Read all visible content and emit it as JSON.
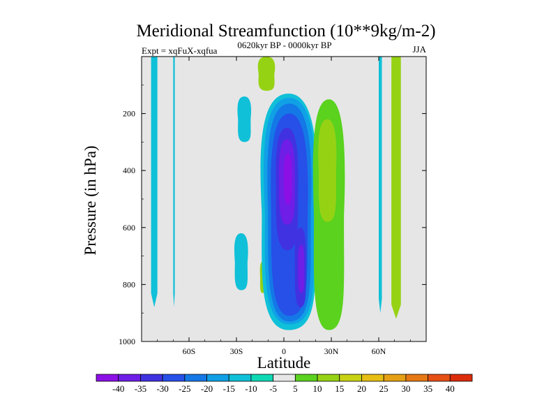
{
  "chart_data": {
    "type": "filled-contour",
    "title": "Meridional Streamfunction (10**9kg/m-2)",
    "left_string": "Expt = xqFuX-xqfua",
    "center_string": "0620kyr BP - 0000kyr BP",
    "right_string": "JJA",
    "xlabel": "Latitude",
    "ylabel": "Pressure (in hPa)",
    "xlim": [
      -90,
      90
    ],
    "ylim": [
      1000,
      0
    ],
    "x_ticks": [
      {
        "value": -60,
        "label": "60S"
      },
      {
        "value": -30,
        "label": "30S"
      },
      {
        "value": 0,
        "label": "0"
      },
      {
        "value": 30,
        "label": "30N"
      },
      {
        "value": 60,
        "label": "60N"
      }
    ],
    "y_ticks": [
      {
        "value": 200,
        "label": "200"
      },
      {
        "value": 400,
        "label": "400"
      },
      {
        "value": 600,
        "label": "600"
      },
      {
        "value": 800,
        "label": "800"
      },
      {
        "value": 1000,
        "label": "1000"
      }
    ],
    "background_color": "#e6e6e6",
    "colorbar": {
      "labels": [
        "-40",
        "-35",
        "-30",
        "-25",
        "-20",
        "-15",
        "-10",
        "-5",
        "5",
        "10",
        "15",
        "20",
        "25",
        "30",
        "35",
        "40"
      ],
      "colors": [
        "#8c10e6",
        "#6e1ee6",
        "#4032e0",
        "#2650e8",
        "#1478e6",
        "#10a0e6",
        "#10c0d8",
        "#10d8b4",
        "#e6e6e6",
        "#5ad21e",
        "#96d214",
        "#c8d214",
        "#e6be14",
        "#e6a014",
        "#e67814",
        "#e65014",
        "#dc2d0a"
      ]
    },
    "features": [
      {
        "name": "south-polar-band",
        "level": -10,
        "lat": [
          -84,
          -80
        ],
        "p": [
          0,
          880
        ]
      },
      {
        "name": "south-narrow-band",
        "level": -10,
        "lat": [
          -70,
          -69
        ],
        "p": [
          0,
          880
        ]
      },
      {
        "name": "south-upper-cell",
        "level": -10,
        "lat": [
          -29,
          -21
        ],
        "p": [
          140,
          300
        ]
      },
      {
        "name": "south-lower-cell",
        "level": -10,
        "lat": [
          -31,
          -23
        ],
        "p": [
          620,
          820
        ]
      },
      {
        "name": "south-positive-sliver",
        "level": 10,
        "lat": [
          -15,
          -12
        ],
        "p": [
          720,
          830
        ]
      },
      {
        "name": "tropical-negative-cell",
        "level": -40,
        "lat": [
          -14,
          20
        ],
        "p": [
          130,
          960
        ]
      },
      {
        "name": "upper-positive-cell",
        "level": 10,
        "lat": [
          -16,
          -6
        ],
        "p": [
          0,
          120
        ]
      },
      {
        "name": "equatorial-positive-cell",
        "level": 10,
        "lat": [
          19,
          38
        ],
        "p": [
          150,
          960
        ]
      },
      {
        "name": "north-polar-band",
        "level": 10,
        "lat": [
          68,
          74
        ],
        "p": [
          0,
          920
        ]
      },
      {
        "name": "north-thin-line",
        "level": -10,
        "lat": [
          60,
          62
        ],
        "p": [
          0,
          900
        ]
      }
    ]
  }
}
